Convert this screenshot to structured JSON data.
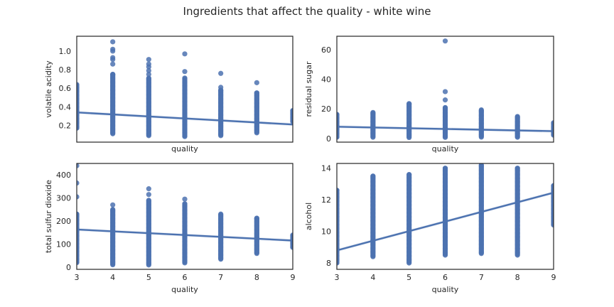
{
  "figure": {
    "title": "Ingredients that affect the quality - white wine"
  },
  "colors": {
    "series": "#4c72b0",
    "frame": "#262626",
    "background": "#ffffff"
  },
  "chart_data": [
    {
      "type": "scatter",
      "position": "top-left",
      "xlabel": "quality",
      "ylabel": "volatile acidity",
      "xlim": [
        3,
        9
      ],
      "ylim": [
        0.02,
        1.16
      ],
      "xticks": [
        3,
        4,
        5,
        6,
        7,
        8,
        9
      ],
      "show_xticklabels": false,
      "yticks": [
        0.2,
        0.4,
        0.6,
        0.8,
        1.0
      ],
      "ytick_labels": [
        "0.2",
        "0.4",
        "0.6",
        "0.8",
        "1.0"
      ],
      "grid": false,
      "columns": [
        {
          "x": 3,
          "min": 0.17,
          "max": 0.64,
          "outliers": []
        },
        {
          "x": 4,
          "min": 0.11,
          "max": 0.75,
          "outliers": [
            0.86,
            0.91,
            0.93,
            1.0,
            1.02,
            1.1
          ]
        },
        {
          "x": 5,
          "min": 0.09,
          "max": 0.71,
          "outliers": [
            0.75,
            0.79,
            0.83,
            0.86,
            0.91
          ]
        },
        {
          "x": 6,
          "min": 0.08,
          "max": 0.71,
          "outliers": [
            0.78,
            0.97
          ]
        },
        {
          "x": 7,
          "min": 0.09,
          "max": 0.58,
          "outliers": [
            0.61,
            0.76
          ]
        },
        {
          "x": 8,
          "min": 0.12,
          "max": 0.55,
          "outliers": [
            0.66
          ]
        },
        {
          "x": 9,
          "min": 0.24,
          "max": 0.36,
          "outliers": []
        }
      ],
      "regression": {
        "x": [
          3,
          9
        ],
        "y": [
          0.34,
          0.21
        ]
      }
    },
    {
      "type": "scatter",
      "position": "top-right",
      "xlabel": "quality",
      "ylabel": "residual sugar",
      "xlim": [
        3,
        9
      ],
      "ylim": [
        -2.5,
        69
      ],
      "xticks": [
        3,
        4,
        5,
        6,
        7,
        8,
        9
      ],
      "show_xticklabels": false,
      "yticks": [
        0,
        20,
        40,
        60
      ],
      "ytick_labels": [
        "0",
        "20",
        "40",
        "60"
      ],
      "grid": false,
      "columns": [
        {
          "x": 3,
          "min": 0.8,
          "max": 16.2,
          "outliers": []
        },
        {
          "x": 4,
          "min": 0.8,
          "max": 17.5,
          "outliers": []
        },
        {
          "x": 5,
          "min": 0.6,
          "max": 23.5,
          "outliers": []
        },
        {
          "x": 6,
          "min": 0.7,
          "max": 20.8,
          "outliers": [
            26.0,
            31.6,
            65.8
          ]
        },
        {
          "x": 7,
          "min": 0.9,
          "max": 19.3,
          "outliers": []
        },
        {
          "x": 8,
          "min": 0.8,
          "max": 14.8,
          "outliers": []
        },
        {
          "x": 9,
          "min": 2.2,
          "max": 10.6,
          "outliers": []
        }
      ],
      "regression": {
        "x": [
          3,
          9
        ],
        "y": [
          7.9,
          4.9
        ]
      }
    },
    {
      "type": "scatter",
      "position": "bottom-left",
      "xlabel": "quality",
      "ylabel": "total sulfur dioxide",
      "xlim": [
        3,
        9
      ],
      "ylim": [
        -10,
        450
      ],
      "xticks": [
        3,
        4,
        5,
        6,
        7,
        8,
        9
      ],
      "show_xticklabels": true,
      "yticks": [
        0,
        100,
        200,
        300,
        400
      ],
      "ytick_labels": [
        "0",
        "100",
        "200",
        "300",
        "400"
      ],
      "grid": false,
      "columns": [
        {
          "x": 3,
          "min": 19,
          "max": 230,
          "outliers": [
            305,
            365,
            440
          ]
        },
        {
          "x": 4,
          "min": 10,
          "max": 250,
          "outliers": [
            270
          ]
        },
        {
          "x": 5,
          "min": 9,
          "max": 290,
          "outliers": [
            315,
            340
          ]
        },
        {
          "x": 6,
          "min": 18,
          "max": 275,
          "outliers": [
            295
          ]
        },
        {
          "x": 7,
          "min": 34,
          "max": 230,
          "outliers": []
        },
        {
          "x": 8,
          "min": 59,
          "max": 212,
          "outliers": []
        },
        {
          "x": 9,
          "min": 85,
          "max": 139,
          "outliers": []
        }
      ],
      "regression": {
        "x": [
          3,
          9
        ],
        "y": [
          163,
          115
        ]
      }
    },
    {
      "type": "scatter",
      "position": "bottom-right",
      "xlabel": "quality",
      "ylabel": "alcohol",
      "xlim": [
        3,
        9
      ],
      "ylim": [
        7.6,
        14.3
      ],
      "xticks": [
        3,
        4,
        5,
        6,
        7,
        8,
        9
      ],
      "show_xticklabels": true,
      "yticks": [
        8,
        10,
        12,
        14
      ],
      "ytick_labels": [
        "8",
        "10",
        "12",
        "14"
      ],
      "grid": false,
      "columns": [
        {
          "x": 3,
          "min": 8.0,
          "max": 12.6,
          "outliers": []
        },
        {
          "x": 4,
          "min": 8.4,
          "max": 13.5,
          "outliers": []
        },
        {
          "x": 5,
          "min": 8.0,
          "max": 13.6,
          "outliers": []
        },
        {
          "x": 6,
          "min": 8.5,
          "max": 14.0,
          "outliers": []
        },
        {
          "x": 7,
          "min": 8.6,
          "max": 14.2,
          "outliers": []
        },
        {
          "x": 8,
          "min": 8.5,
          "max": 14.0,
          "outliers": []
        },
        {
          "x": 9,
          "min": 10.4,
          "max": 12.9,
          "outliers": []
        }
      ],
      "regression": {
        "x": [
          3,
          9
        ],
        "y": [
          8.8,
          12.45
        ]
      }
    }
  ]
}
